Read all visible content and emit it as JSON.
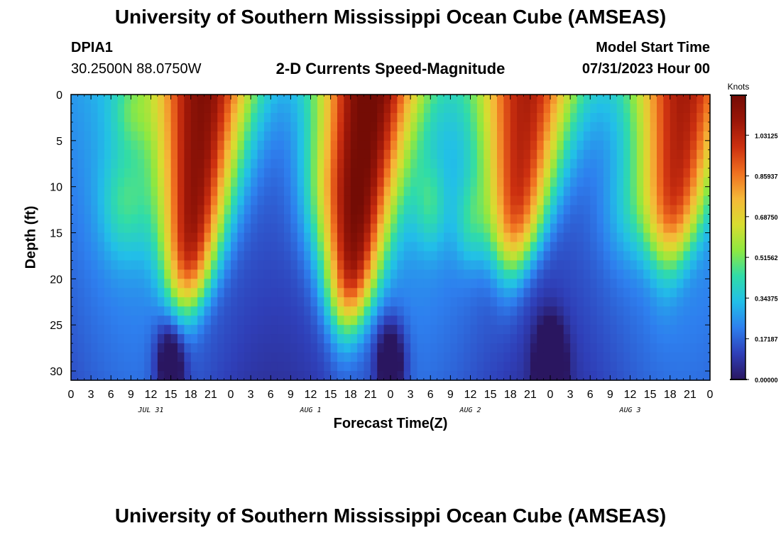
{
  "header": {
    "title": "University of Southern Mississippi Ocean Cube (AMSEAS)",
    "station_id": "DPIA1",
    "station_coords": "30.2500N  88.0750W",
    "subtitle": "2-D Currents Speed-Magnitude",
    "model_start_label": "Model Start Time",
    "model_start_value": "07/31/2023 Hour 00",
    "footer_title": "University of Southern Mississippi Ocean Cube (AMSEAS)"
  },
  "chart_data": {
    "type": "heatmap",
    "title": "2-D Currents Speed-Magnitude",
    "xlabel": "Forecast Time(Z)",
    "ylabel": "Depth (ft)",
    "x_unit": "hours since 07/31/2023 00Z",
    "xlim": [
      0,
      96
    ],
    "ylim": [
      0,
      31
    ],
    "y_inverted": true,
    "x_ticks": [
      0,
      3,
      6,
      9,
      12,
      15,
      18,
      21,
      24,
      27,
      30,
      33,
      36,
      39,
      42,
      45,
      48,
      51,
      54,
      57,
      60,
      63,
      66,
      69,
      72,
      75,
      78,
      81,
      84,
      87,
      90,
      93,
      96
    ],
    "x_tick_labels": [
      "0",
      "3",
      "6",
      "9",
      "12",
      "15",
      "18",
      "21",
      "0",
      "3",
      "6",
      "9",
      "12",
      "15",
      "18",
      "21",
      "0",
      "3",
      "6",
      "9",
      "12",
      "15",
      "18",
      "21",
      "0",
      "3",
      "6",
      "9",
      "12",
      "15",
      "18",
      "21",
      "0"
    ],
    "y_ticks": [
      0,
      5,
      10,
      15,
      20,
      25,
      30
    ],
    "y_tick_labels": [
      "0",
      "5",
      "10",
      "15",
      "20",
      "25",
      "30"
    ],
    "day_labels": [
      {
        "label": "JUL 31",
        "hour": 12
      },
      {
        "label": "AUG 1",
        "hour": 36
      },
      {
        "label": "AUG 2",
        "hour": 60
      },
      {
        "label": "AUG 3",
        "hour": 84
      }
    ],
    "colorbar": {
      "title": "Knots",
      "range": [
        0,
        1.2
      ],
      "ticks": [
        0.0,
        0.171875,
        0.34375,
        0.515625,
        0.6875,
        0.859375,
        1.03125
      ],
      "tick_labels": [
        "0.00000",
        "0.17187",
        "0.34375",
        "0.51562",
        "0.68750",
        "0.85937",
        "1.03125"
      ],
      "colors": [
        "#2a1660",
        "#2f3fb8",
        "#2e7fee",
        "#22bfe8",
        "#30dca8",
        "#8fe840",
        "#d8dc30",
        "#f5b838",
        "#f07020",
        "#cc3010",
        "#9a1608",
        "#740c05"
      ]
    },
    "speed_peaks_knots": [
      {
        "center_hour": 20,
        "max_speed": 1.15,
        "depth_ft": "0-22"
      },
      {
        "center_hour": 44.5,
        "max_speed": 1.2,
        "depth_ft": "0-24"
      },
      {
        "center_hour": 68.5,
        "max_speed": 1.1,
        "depth_ft": "0-18"
      },
      {
        "center_hour": 92,
        "max_speed": 1.0,
        "depth_ft": "0-17"
      }
    ],
    "speed_minima_knots": [
      {
        "center_hour": 15,
        "min_speed": 0.03,
        "depth_ft": "26-31"
      },
      {
        "center_hour": 48,
        "min_speed": 0.0,
        "depth_ft": "26-31"
      },
      {
        "center_hour": 72,
        "min_speed": 0.03,
        "depth_ft": "26-31"
      }
    ]
  }
}
